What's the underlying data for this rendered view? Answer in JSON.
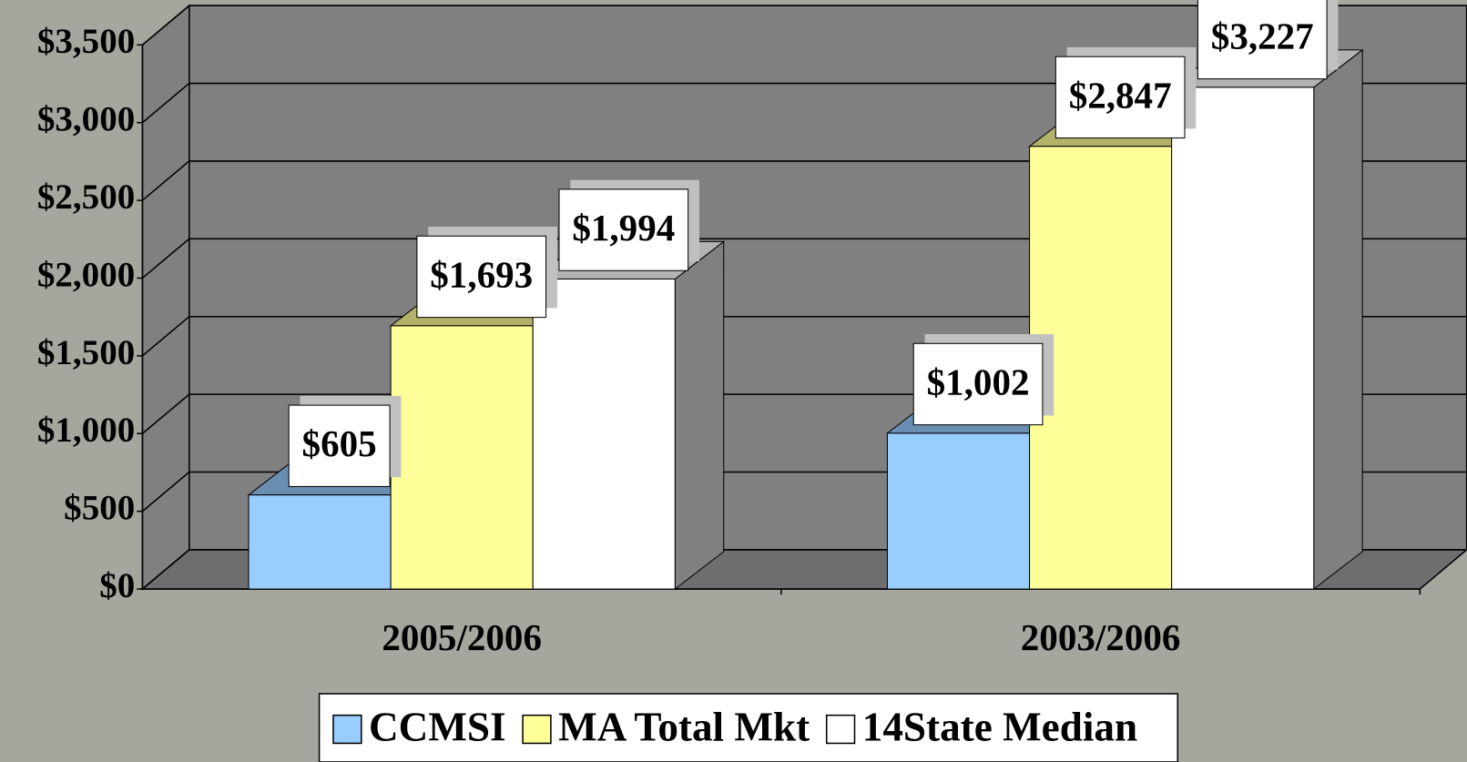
{
  "chart_data": {
    "type": "bar3d",
    "categories": [
      "2005/2006",
      "2003/2006"
    ],
    "series": [
      {
        "name": "CCMSI",
        "color": "#99ccff",
        "values": [
          605,
          1002
        ],
        "value_labels": [
          "$605",
          "$1,002"
        ]
      },
      {
        "name": "MA Total Mkt",
        "color": "#ffff99",
        "values": [
          1693,
          2847
        ],
        "value_labels": [
          "$1,693",
          "$2,847"
        ]
      },
      {
        "name": "14State Median",
        "color": "#ffffff",
        "values": [
          1994,
          3227
        ],
        "value_labels": [
          "$1,994",
          "$3,227"
        ]
      }
    ],
    "ylim": [
      0,
      3500
    ],
    "yticks": [
      {
        "value": 0,
        "label": "$0"
      },
      {
        "value": 500,
        "label": "$500"
      },
      {
        "value": 1000,
        "label": "$1,000"
      },
      {
        "value": 1500,
        "label": "$1,500"
      },
      {
        "value": 2000,
        "label": "$2,000"
      },
      {
        "value": 2500,
        "label": "$2,500"
      },
      {
        "value": 3000,
        "label": "$3,000"
      },
      {
        "value": 3500,
        "label": "$3,500"
      }
    ],
    "grid": true,
    "legend": "bottom"
  }
}
